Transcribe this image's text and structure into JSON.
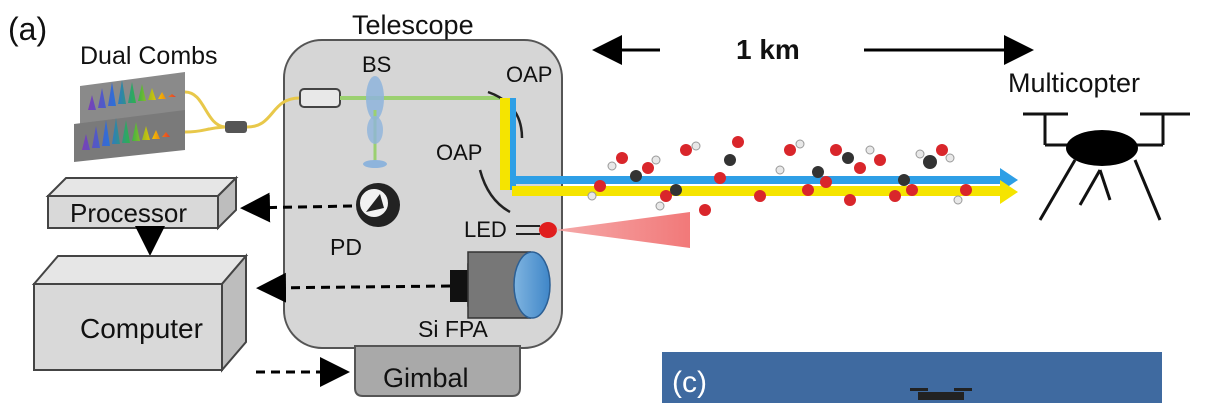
{
  "panel_a_label": "(a)",
  "panel_c_label": "(c)",
  "labels": {
    "telescope": "Telescope",
    "dual_combs": "Dual Combs",
    "bs": "BS",
    "oap_top": "OAP",
    "oap_bottom": "OAP",
    "distance": "1 km",
    "multicopter": "Multicopter",
    "processor": "Processor",
    "computer": "Computer",
    "pd": "PD",
    "led": "LED",
    "si_fpa": "Si FPA",
    "gimbal": "Gimbal"
  },
  "colors": {
    "telescope_body": "#d6d6d6",
    "box_face": "#d9d9d9",
    "beam_blue": "#2e9fe6",
    "beam_yellow": "#f5e400",
    "fiber": "#e8c84a",
    "led_cone": "#f08080",
    "sky": "#3f6aa0"
  }
}
